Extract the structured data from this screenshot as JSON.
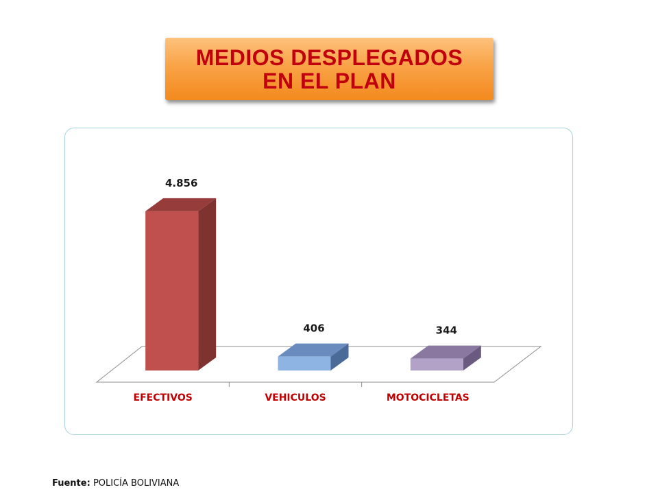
{
  "title": {
    "line1": "MEDIOS DESPLEGADOS",
    "line2": "EN EL PLAN"
  },
  "source": {
    "prefix": "Fuente:",
    "text": "POLICÍA BOLIVIANA"
  },
  "chart_data": {
    "type": "bar",
    "categories": [
      "EFECTIVOS",
      "VEHICULOS",
      "MOTOCICLETAS"
    ],
    "values": [
      4856,
      406,
      344
    ],
    "data_labels": [
      "4.856",
      "406",
      "344"
    ],
    "title": "",
    "xlabel": "",
    "ylabel": "",
    "ylim": [
      0,
      5000
    ],
    "grid": false,
    "legend": "none",
    "style": "3d-column",
    "colors": {
      "EFECTIVOS": {
        "front": "#c0504d",
        "side": "#7f3331",
        "top": "#963c3a"
      },
      "VEHICULOS": {
        "front": "#8eb4e3",
        "side": "#4a6a98",
        "top": "#6a8bbd"
      },
      "MOTOCICLETAS": {
        "front": "#b3a2c7",
        "side": "#6b5a80",
        "top": "#8a78a0"
      }
    },
    "category_label_color": "#c00000"
  }
}
